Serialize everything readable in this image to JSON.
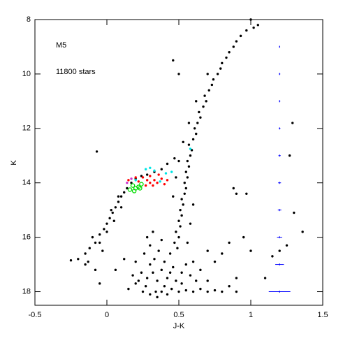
{
  "chart_data": {
    "type": "scatter",
    "annotations": [
      "M5",
      "11800 stars"
    ],
    "x_label": "J-K",
    "y_label": "K",
    "xlim": [
      -0.5,
      1.5
    ],
    "ylim": [
      18.5,
      8
    ],
    "xticks": [
      -0.5,
      0,
      0.5,
      1,
      1.5
    ],
    "yticks": [
      8,
      10,
      12,
      14,
      16,
      18
    ],
    "series": [
      {
        "color": "#000000",
        "marker": "dot",
        "x": [
          0.49,
          0.47,
          0.5,
          0.48,
          0.51,
          0.5,
          0.52,
          0.51,
          0.53,
          0.52,
          0.54,
          0.55,
          0.54,
          0.56,
          0.55,
          0.57,
          0.56,
          0.58,
          0.59,
          0.57,
          0.6,
          0.62,
          0.61,
          0.63,
          0.65,
          0.64,
          0.67,
          0.69,
          0.68,
          0.71,
          0.73,
          0.74,
          0.77,
          0.79,
          0.8,
          0.83,
          0.85,
          0.88,
          0.9,
          0.93,
          0.97,
          1.02,
          1.05,
          0.46,
          0.48,
          0.5,
          0.53,
          0.57,
          0.62,
          0.7,
          0.6,
          0.58,
          0.56,
          0.3,
          0.32,
          0.28,
          0.35,
          0.4,
          0.45,
          0.5,
          0.55,
          0.6,
          0.65,
          0.7,
          0.75,
          0.38,
          0.42,
          0.33,
          0.36,
          0.4,
          0.44,
          0.3,
          0.27,
          0.25,
          0.3,
          0.35,
          0.48,
          0.52,
          0.46,
          0.24,
          0.22,
          0.2,
          0.18,
          0.38,
          0.42,
          0.8,
          0.85,
          0.62,
          0.58,
          0.55,
          0.28,
          0.32,
          0.38,
          0.15,
          0.12,
          0.2,
          0.9,
          0.7,
          0.65,
          0.26,
          0.34,
          0.44,
          0.52,
          -0.12,
          -0.08,
          -0.05,
          -0.02,
          0.0,
          0.02,
          0.04,
          0.06,
          0.08,
          0.1,
          0.12,
          0.14,
          0.17,
          0.2,
          0.24,
          0.28,
          0.33,
          0.38,
          0.42,
          0.47,
          -0.05,
          0.0,
          0.05,
          -0.1,
          0.1,
          -0.15,
          -0.2,
          -0.25,
          -0.13,
          -0.03,
          0.03,
          0.08,
          -0.07,
          0.46,
          0.5,
          0.88,
          0.9,
          0.97,
          1.29,
          1.27,
          1.3,
          1.36,
          1.0,
          0.95,
          0.85,
          0.8,
          0.7,
          0.75,
          1.15,
          1.2,
          1.25,
          -0.05,
          -0.08,
          0.06,
          1.1,
          1.0,
          0.6,
          0.9,
          -0.15
        ],
        "values": [
          16.4,
          16.2,
          16.0,
          15.8,
          15.6,
          15.4,
          15.2,
          15.0,
          14.8,
          14.6,
          14.4,
          14.2,
          14.0,
          13.8,
          13.6,
          13.4,
          13.2,
          13.0,
          12.8,
          12.6,
          12.4,
          12.2,
          12.0,
          11.8,
          11.6,
          11.4,
          11.2,
          11.0,
          10.8,
          10.6,
          10.4,
          10.2,
          10.0,
          9.8,
          9.6,
          9.4,
          9.2,
          9.0,
          8.8,
          8.6,
          8.4,
          8.3,
          8.2,
          14.5,
          13.8,
          13.2,
          12.5,
          11.8,
          11.0,
          10.0,
          14.8,
          15.5,
          16.2,
          17.0,
          17.3,
          17.5,
          17.6,
          17.8,
          17.9,
          18.0,
          17.95,
          18.0,
          17.9,
          18.0,
          17.95,
          17.2,
          17.5,
          16.8,
          16.5,
          16.9,
          16.6,
          16.3,
          17.8,
          18.0,
          18.1,
          18.2,
          17.6,
          17.3,
          17.1,
          17.3,
          17.6,
          16.9,
          17.4,
          18.0,
          18.1,
          18.0,
          17.8,
          17.6,
          17.4,
          17.0,
          16.0,
          15.8,
          16.1,
          17.9,
          16.8,
          17.7,
          18.0,
          17.6,
          17.2,
          16.6,
          18.0,
          17.3,
          17.7,
          16.4,
          16.2,
          15.9,
          15.7,
          15.5,
          15.3,
          15.1,
          14.9,
          14.7,
          14.5,
          14.35,
          14.2,
          14.0,
          13.85,
          13.75,
          13.7,
          13.6,
          13.5,
          13.3,
          13.1,
          16.2,
          15.8,
          15.4,
          16.0,
          14.9,
          16.6,
          16.8,
          16.85,
          16.9,
          16.5,
          15.0,
          14.5,
          12.85,
          9.5,
          10.0,
          14.2,
          14.4,
          14.4,
          11.8,
          13.0,
          15.1,
          15.8,
          16.5,
          16.0,
          16.2,
          16.6,
          16.5,
          16.9,
          16.7,
          16.5,
          16.3,
          17.7,
          17.2,
          17.2,
          17.5,
          8.0,
          16.9,
          17.5,
          17.0
        ]
      },
      {
        "color": "#ff0000",
        "marker": "dot",
        "x": [
          0.25,
          0.28,
          0.3,
          0.33,
          0.35,
          0.38,
          0.4,
          0.22,
          0.27,
          0.32,
          0.36,
          0.2,
          0.15,
          0.42,
          0.3
        ],
        "values": [
          13.8,
          13.9,
          13.75,
          13.9,
          14.0,
          13.85,
          14.05,
          13.95,
          14.1,
          14.1,
          13.7,
          13.8,
          13.9,
          13.9,
          14.0
        ]
      },
      {
        "color": "#00e5e5",
        "marker": "dot",
        "x": [
          0.27,
          0.3,
          0.33,
          0.41,
          0.45,
          0.2,
          0.58,
          0.37
        ],
        "values": [
          13.5,
          13.45,
          13.55,
          13.65,
          13.6,
          13.9,
          12.75,
          13.95
        ]
      },
      {
        "color": "#00dd00",
        "marker": "open",
        "x": [
          0.18,
          0.2,
          0.22,
          0.24,
          0.16,
          0.19,
          0.23
        ],
        "values": [
          14.1,
          14.2,
          14.15,
          14.05,
          14.25,
          14.3,
          14.2
        ]
      },
      {
        "color": "#cc33cc",
        "marker": "dot",
        "x": [
          0.14,
          0.17
        ],
        "values": [
          14.0,
          13.85
        ]
      }
    ],
    "error_bars": {
      "color": "#0000ff",
      "x": [
        1.2,
        1.2,
        1.2,
        1.2,
        1.2,
        1.2,
        1.2,
        1.2,
        1.2,
        1.2
      ],
      "values": [
        9,
        10,
        11,
        12,
        13,
        14,
        15,
        16,
        17,
        18
      ],
      "xerr": [
        0.004,
        0.005,
        0.005,
        0.006,
        0.008,
        0.01,
        0.012,
        0.018,
        0.03,
        0.075
      ]
    }
  }
}
